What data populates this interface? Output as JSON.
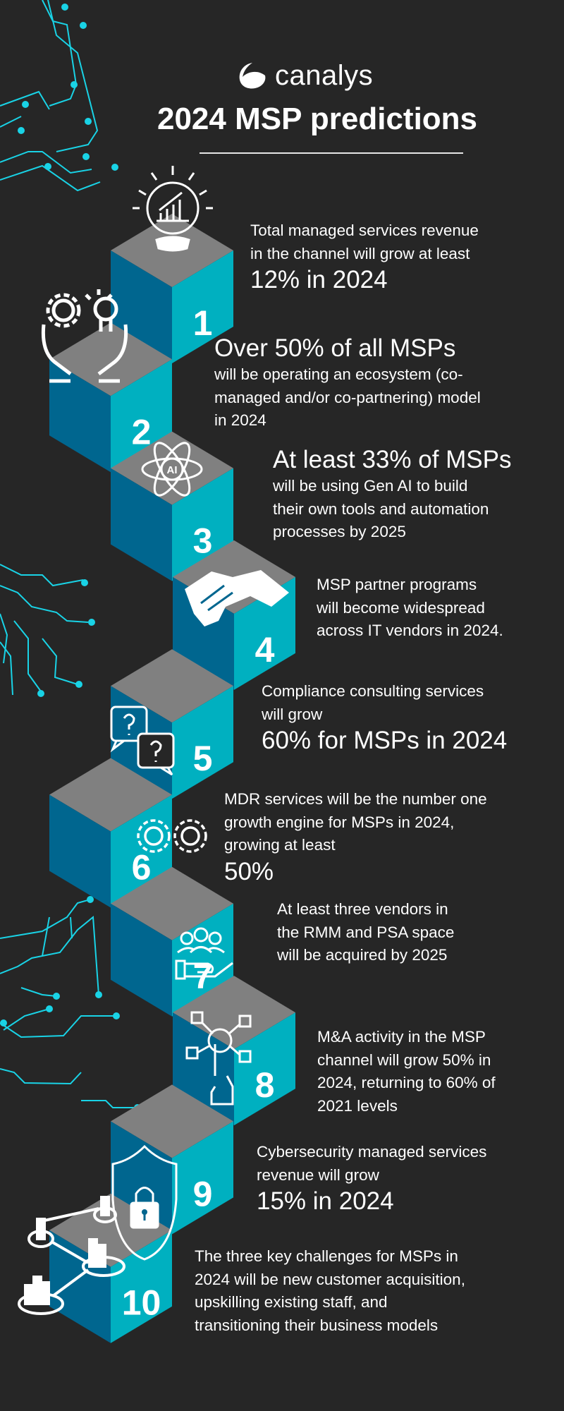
{
  "brand": {
    "name": "canalys",
    "logo_icon": "canalys-swoosh-logo"
  },
  "title": "2024 MSP predictions",
  "colors": {
    "background": "#262626",
    "cube_top": "#808080",
    "cube_left": "#00668f",
    "cube_right": "#00b0c0",
    "circuit": "#19d3e6",
    "text": "#ffffff"
  },
  "predictions": [
    {
      "number": "1",
      "icon": "crystal-ball-growth-chart-icon",
      "lines": [
        {
          "t": "Total managed services revenue",
          "big": false
        },
        {
          "t": "in the channel will grow at least",
          "big": false
        },
        {
          "t": "12% in 2024",
          "big": true
        }
      ]
    },
    {
      "number": "2",
      "icon": "hands-gear-lightbulb-icon",
      "lines": [
        {
          "t": "Over 50% of all MSPs",
          "big": true
        },
        {
          "t": "will be operating an ecosystem (co-",
          "big": false
        },
        {
          "t": "managed and/or co-partnering) model",
          "big": false
        },
        {
          "t": "in 2024",
          "big": false
        }
      ]
    },
    {
      "number": "3",
      "icon": "ai-atom-icon",
      "lines": [
        {
          "t": "At least 33% of MSPs",
          "big": true
        },
        {
          "t": "will be using Gen AI to build",
          "big": false
        },
        {
          "t": "their own tools and automation",
          "big": false
        },
        {
          "t": "processes by 2025",
          "big": false
        }
      ]
    },
    {
      "number": "4",
      "icon": "handshake-icon",
      "lines": [
        {
          "t": "MSP partner programs",
          "big": false
        },
        {
          "t": "will become widespread",
          "big": false
        },
        {
          "t": "across IT vendors in 2024.",
          "big": false
        }
      ]
    },
    {
      "number": "5",
      "icon": "question-bubbles-icon",
      "lines": [
        {
          "t": "Compliance consulting services",
          "big": false
        },
        {
          "t": "will grow",
          "big": false
        },
        {
          "t": "60% for MSPs in 2024",
          "big": true
        }
      ]
    },
    {
      "number": "6",
      "icon": "gears-icon",
      "lines": [
        {
          "t": "MDR services will be the number one",
          "big": false
        },
        {
          "t": "growth engine for MSPs in 2024,",
          "big": false
        },
        {
          "t": "growing at least",
          "big": false
        },
        {
          "t": "50%",
          "big": true
        }
      ]
    },
    {
      "number": "7",
      "icon": "hand-people-icon",
      "lines": [
        {
          "t": "At least three vendors in",
          "big": false
        },
        {
          "t": "the RMM and PSA space",
          "big": false
        },
        {
          "t": "will be acquired by 2025",
          "big": false
        }
      ]
    },
    {
      "number": "8",
      "icon": "hand-network-touch-icon",
      "lines": [
        {
          "t": "M&A activity in the MSP",
          "big": false
        },
        {
          "t": "channel will grow 50% in",
          "big": false
        },
        {
          "t": "2024, returning to 60% of",
          "big": false
        },
        {
          "t": "2021 levels",
          "big": false
        }
      ]
    },
    {
      "number": "9",
      "icon": "shield-lock-icon",
      "lines": [
        {
          "t": "Cybersecurity managed services",
          "big": false
        },
        {
          "t": "revenue will grow",
          "big": false
        },
        {
          "t": "15% in 2024",
          "big": true
        }
      ]
    },
    {
      "number": "10",
      "icon": "connected-charts-icon",
      "lines": [
        {
          "t": "The three key challenges for MSPs in",
          "big": false
        },
        {
          "t": "2024 will be new customer acquisition,",
          "big": false
        },
        {
          "t": "upskilling existing staff, and",
          "big": false
        },
        {
          "t": "transitioning their business models",
          "big": false
        }
      ]
    }
  ]
}
